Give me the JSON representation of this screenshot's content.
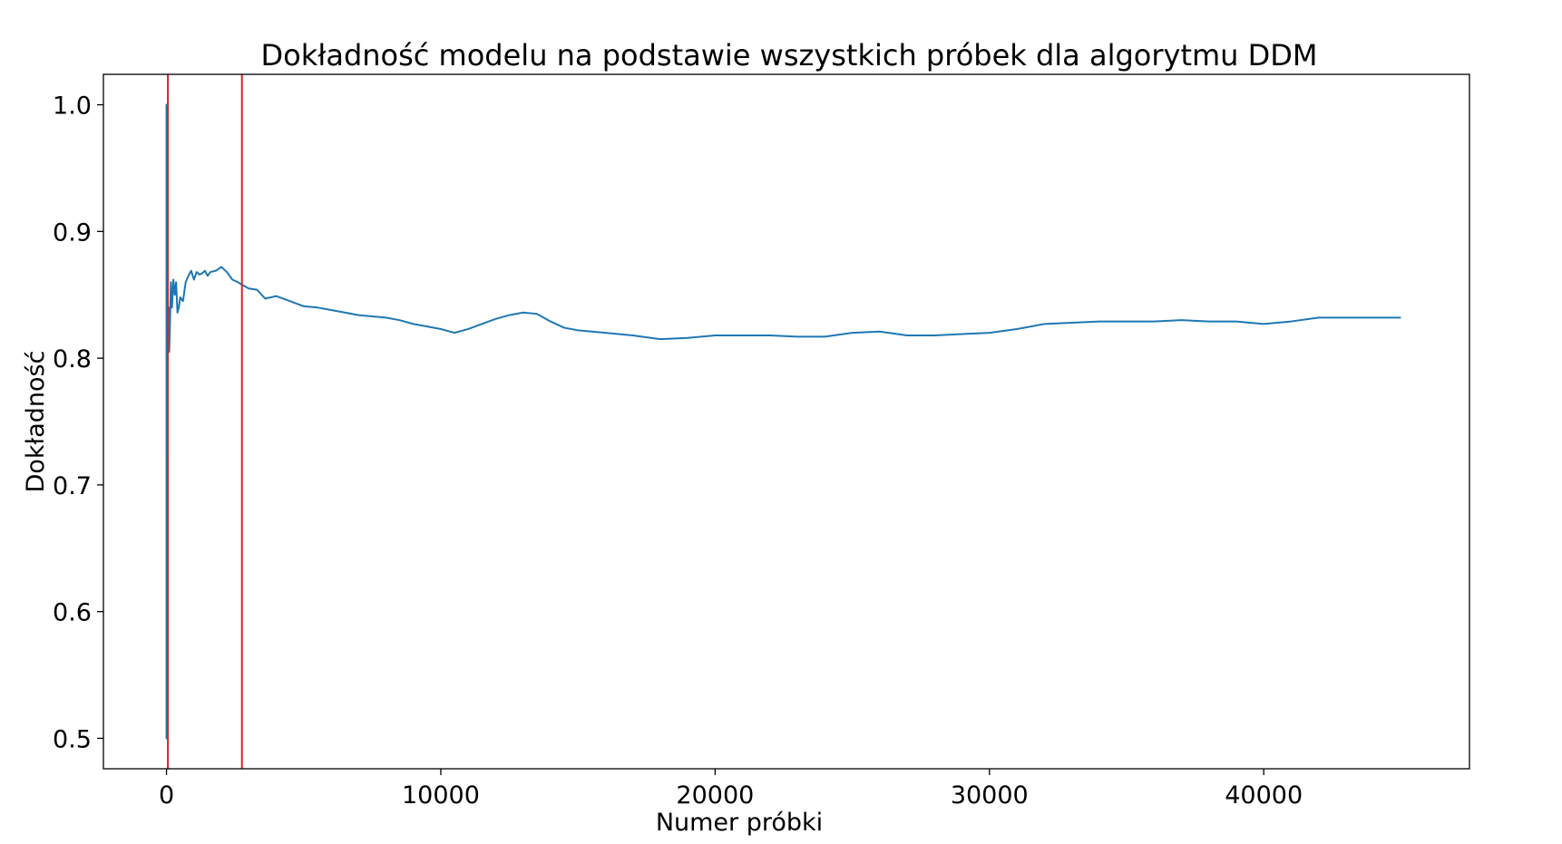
{
  "colors": {
    "series": "#1f77b4",
    "drift_marker": "#d62728",
    "axes": "#000000",
    "background": "#ffffff"
  },
  "chart_data": {
    "type": "line",
    "title": "Dokładność modelu na podstawie wszystkich próbek dla algorytmu DDM",
    "xlabel": "Numer próbki",
    "ylabel": "Dokładność",
    "xlim": [
      -2300,
      47500
    ],
    "ylim": [
      0.476,
      1.024
    ],
    "xticks": [
      0,
      10000,
      20000,
      30000,
      40000
    ],
    "xtick_labels": [
      "0",
      "10000",
      "20000",
      "30000",
      "40000"
    ],
    "yticks": [
      0.5,
      0.6,
      0.7,
      0.8,
      0.9,
      1.0
    ],
    "ytick_labels": [
      "0.5",
      "0.6",
      "0.7",
      "0.8",
      "0.9",
      "1.0"
    ],
    "grid": false,
    "drift_lines_x": [
      50,
      2750
    ],
    "series": [
      {
        "x": [
          0,
          1,
          2,
          5,
          10,
          20,
          40,
          60,
          80,
          100,
          130,
          160,
          200,
          250,
          300,
          350,
          400,
          450,
          500,
          600,
          700,
          800,
          900,
          1000,
          1100,
          1200,
          1300,
          1400,
          1500,
          1600,
          1800,
          2000,
          2200,
          2400,
          2600,
          2750,
          3000,
          3300,
          3600,
          4000,
          4500,
          5000,
          5500,
          6000,
          6500,
          7000,
          7500,
          8000,
          8500,
          9000,
          9500,
          10000,
          10500,
          11000,
          11500,
          12000,
          12500,
          13000,
          13500,
          14000,
          14500,
          15000,
          16000,
          17000,
          18000,
          19000,
          20000,
          21000,
          22000,
          23000,
          24000,
          25000,
          26000,
          27000,
          28000,
          29000,
          30000,
          31000,
          32000,
          33000,
          34000,
          35000,
          36000,
          37000,
          38000,
          39000,
          40000,
          41000,
          42000,
          43000,
          44000,
          45000
        ],
        "values": [
          1.0,
          0.5,
          1.0,
          0.6,
          0.92,
          0.83,
          0.8,
          0.825,
          0.84,
          0.805,
          0.83,
          0.86,
          0.84,
          0.862,
          0.85,
          0.86,
          0.836,
          0.84,
          0.848,
          0.845,
          0.86,
          0.865,
          0.869,
          0.862,
          0.868,
          0.866,
          0.867,
          0.869,
          0.865,
          0.868,
          0.869,
          0.872,
          0.868,
          0.862,
          0.86,
          0.858,
          0.855,
          0.854,
          0.847,
          0.849,
          0.845,
          0.841,
          0.84,
          0.838,
          0.836,
          0.834,
          0.833,
          0.832,
          0.83,
          0.827,
          0.825,
          0.823,
          0.82,
          0.823,
          0.827,
          0.831,
          0.834,
          0.836,
          0.835,
          0.829,
          0.824,
          0.822,
          0.82,
          0.818,
          0.815,
          0.816,
          0.818,
          0.818,
          0.818,
          0.817,
          0.817,
          0.82,
          0.821,
          0.818,
          0.818,
          0.819,
          0.82,
          0.823,
          0.827,
          0.828,
          0.829,
          0.829,
          0.829,
          0.83,
          0.829,
          0.829,
          0.827,
          0.829,
          0.832,
          0.832,
          0.832,
          0.832
        ]
      }
    ]
  }
}
